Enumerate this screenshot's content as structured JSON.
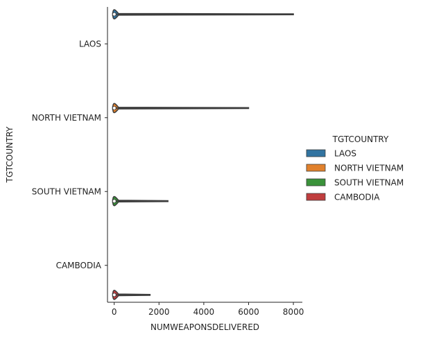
{
  "chart_data": {
    "type": "violin",
    "orientation": "horizontal",
    "xlabel": "NUMWEAPONSDELIVERED",
    "ylabel": "TGTCOUNTRY",
    "xlim": [
      -300,
      8400
    ],
    "xticks": [
      0,
      2000,
      4000,
      6000,
      8000
    ],
    "xtick_labels": [
      "0",
      "2000",
      "4000",
      "6000",
      "8000"
    ],
    "categories": [
      "LAOS",
      "NORTH VIETNAM",
      "SOUTH VIETNAM",
      "CAMBODIA"
    ],
    "grid": false,
    "legend": {
      "title": "TGTCOUNTRY",
      "placement": "right",
      "entries": [
        {
          "label": "LAOS",
          "color": "#3274a1"
        },
        {
          "label": "NORTH VIETNAM",
          "color": "#e1812c"
        },
        {
          "label": "SOUTH VIETNAM",
          "color": "#3a923a"
        },
        {
          "label": "CAMBODIA",
          "color": "#c03d3e"
        }
      ]
    },
    "series": [
      {
        "name": "LAOS",
        "category": "LAOS",
        "min": 0,
        "max": 8000,
        "median": 4,
        "q1": 0,
        "q3": 8,
        "offset": -0.4
      },
      {
        "name": "NORTH VIETNAM",
        "category": "NORTH VIETNAM",
        "min": 0,
        "max": 6000,
        "median": 4,
        "q1": 0,
        "q3": 8,
        "offset": -0.13
      },
      {
        "name": "SOUTH VIETNAM",
        "category": "SOUTH VIETNAM",
        "min": 0,
        "max": 2400,
        "median": 4,
        "q1": 0,
        "q3": 8,
        "offset": 0.13
      },
      {
        "name": "CAMBODIA",
        "category": "CAMBODIA",
        "min": 0,
        "max": 1600,
        "median": 4,
        "q1": 0,
        "q3": 8,
        "offset": 0.4
      }
    ]
  }
}
